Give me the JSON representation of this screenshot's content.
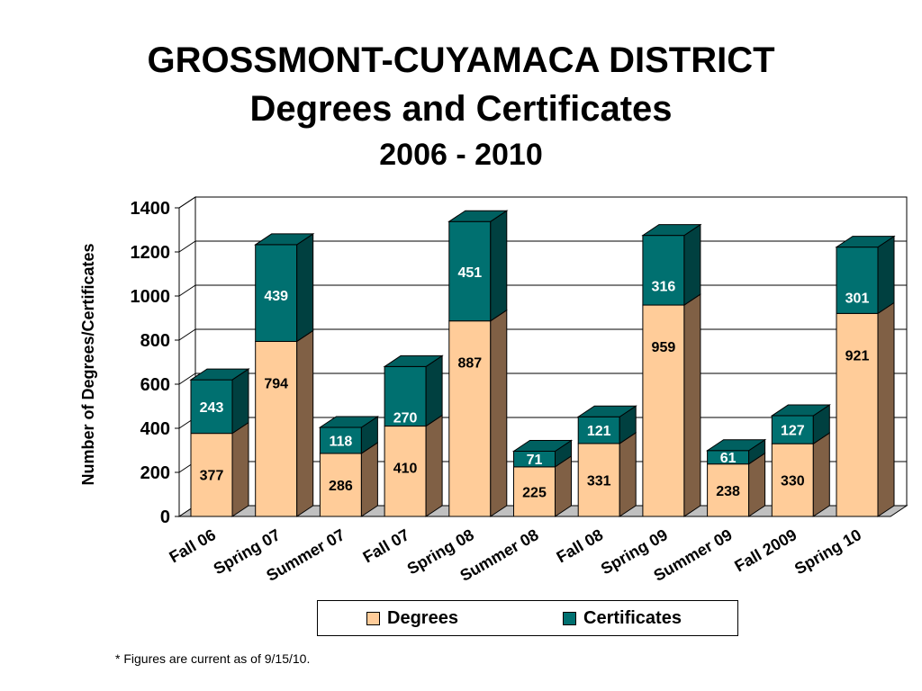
{
  "title": {
    "line1": "GROSSMONT-CUYAMACA DISTRICT",
    "line2": "Degrees and Certificates",
    "line3": "2006 - 2010"
  },
  "footnote": "* Figures are current as of 9/15/10.",
  "colors": {
    "degrees_front": "#FFCC99",
    "degrees_side": "#806045",
    "degrees_top": "#E0B080",
    "certificates_front": "#007070",
    "certificates_side": "#004040",
    "certificates_top": "#006060"
  },
  "chart_data": {
    "type": "bar",
    "stacked": true,
    "three_d": true,
    "title": "GROSSMONT-CUYAMACA DISTRICT Degrees and Certificates 2006 - 2010",
    "xlabel": "",
    "ylabel": "Number of Degrees/Certificates",
    "ylim": [
      0,
      1400
    ],
    "yticks": [
      0,
      200,
      400,
      600,
      800,
      1000,
      1200,
      1400
    ],
    "grid": true,
    "legend_position": "bottom",
    "categories": [
      "Fall 06",
      "Spring 07",
      "Summer 07",
      "Fall 07",
      "Spring 08",
      "Summer 08",
      "Fall 08",
      "Spring 09",
      "Summer 09",
      "Fall 2009",
      "Spring 10"
    ],
    "series": [
      {
        "name": "Degrees",
        "values": [
          377,
          794,
          286,
          410,
          887,
          225,
          331,
          959,
          238,
          330,
          921
        ]
      },
      {
        "name": "Certificates",
        "values": [
          243,
          439,
          118,
          270,
          451,
          71,
          121,
          316,
          61,
          127,
          301
        ]
      }
    ]
  }
}
